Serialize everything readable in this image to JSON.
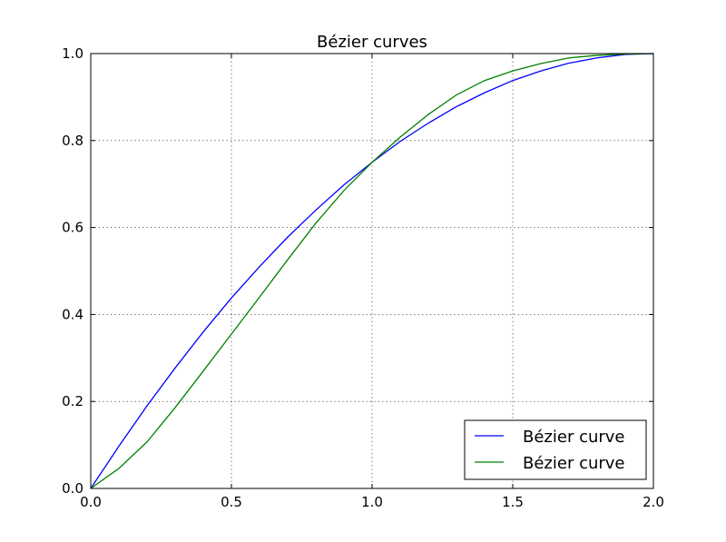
{
  "chart_data": {
    "type": "line",
    "title": "Bézier curves",
    "xlabel": "",
    "ylabel": "",
    "xlim": [
      0.0,
      2.0
    ],
    "ylim": [
      0.0,
      1.0
    ],
    "grid": true,
    "legend_position": "lower-right",
    "x_ticks": [
      "0.0",
      "0.5",
      "1.0",
      "1.5",
      "2.0"
    ],
    "y_ticks": [
      "0.0",
      "0.2",
      "0.4",
      "0.6",
      "0.8",
      "1.0"
    ],
    "series": [
      {
        "name": "Bézier curve",
        "color": "#0000ff",
        "x": [
          0.0,
          0.1,
          0.2,
          0.3,
          0.4,
          0.5,
          0.6,
          0.7,
          0.8,
          0.9,
          1.0,
          1.1,
          1.2,
          1.3,
          1.4,
          1.5,
          1.6,
          1.7,
          1.8,
          1.9,
          2.0
        ],
        "y": [
          0.0,
          0.097,
          0.19,
          0.277,
          0.36,
          0.438,
          0.51,
          0.578,
          0.64,
          0.698,
          0.75,
          0.798,
          0.84,
          0.878,
          0.91,
          0.938,
          0.96,
          0.978,
          0.99,
          0.998,
          1.0
        ]
      },
      {
        "name": "Bézier curve",
        "color": "#008000",
        "x": [
          0.0,
          0.1,
          0.2,
          0.3,
          0.4,
          0.5,
          0.6,
          0.7,
          0.8,
          0.9,
          1.0,
          1.1,
          1.2,
          1.3,
          1.4,
          1.5,
          1.6,
          1.7,
          1.8,
          1.9,
          2.0
        ],
        "y": [
          0.0,
          0.046,
          0.107,
          0.186,
          0.27,
          0.355,
          0.44,
          0.526,
          0.61,
          0.685,
          0.75,
          0.808,
          0.86,
          0.905,
          0.938,
          0.96,
          0.977,
          0.99,
          0.996,
          0.999,
          1.0
        ]
      }
    ]
  }
}
